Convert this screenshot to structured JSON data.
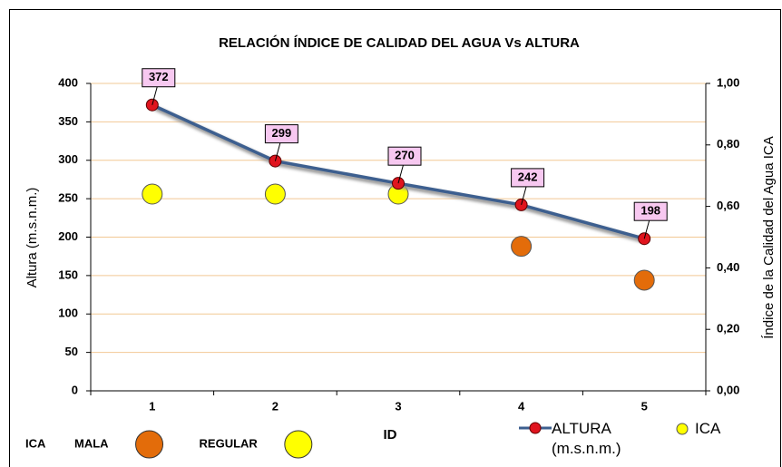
{
  "chart_data": {
    "type": "line",
    "title": "RELACIÓN ÍNDICE DE CALIDAD DEL AGUA Vs ALTURA",
    "x_label": "ID",
    "y_label": "Altura (m.s.n.m.)",
    "y2_label": "Índice de la Calidad del Agua ICA",
    "categories": [
      "1",
      "2",
      "3",
      "4",
      "5"
    ],
    "series": [
      {
        "name": "ALTURA (m.s.n.m.)",
        "type": "line",
        "color": "#3d5f8f",
        "marker_color": "#e0141e",
        "values": [
          372,
          299,
          270,
          242,
          198
        ]
      },
      {
        "name": "ICA",
        "type": "scatter",
        "axis": "y2",
        "color": "#ffff00",
        "point_colors": [
          "#ffff00",
          "#ffff00",
          "#ffff00",
          "#e36c0a",
          "#e36c0a"
        ],
        "values": [
          0.64,
          0.64,
          0.64,
          0.47,
          0.36
        ]
      }
    ],
    "ylim": [
      0,
      400
    ],
    "yticks": [
      0,
      50,
      100,
      150,
      200,
      250,
      300,
      350,
      400
    ],
    "y2lim": [
      0,
      1
    ],
    "y2ticks": [
      {
        "value": 0,
        "label": "0,00"
      },
      {
        "value": 0.2,
        "label": "0,20"
      },
      {
        "value": 0.4,
        "label": "0,40"
      },
      {
        "value": 0.6,
        "label": "0,60"
      },
      {
        "value": 0.8,
        "label": "0,80"
      },
      {
        "value": 1,
        "label": "1,00"
      }
    ],
    "grid": true,
    "quality_legend_title": "ICA",
    "quality_legend": [
      {
        "label": "MALA",
        "color": "#e36c0a"
      },
      {
        "label": "REGULAR",
        "color": "#ffff00"
      }
    ]
  }
}
